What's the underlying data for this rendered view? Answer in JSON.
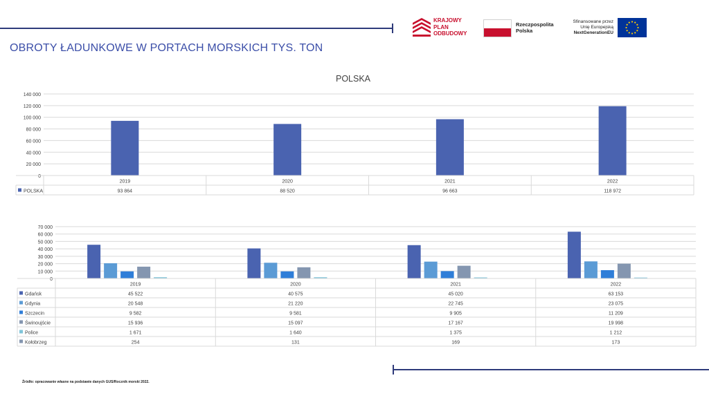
{
  "header": {
    "title": "OBROTY ŁADUNKOWE W PORTACH MORSKICH TYS. TON"
  },
  "logos": {
    "kpo_text": "KRAJOWY\nPLAN\nODBUDOWY",
    "rp_text": "Rzeczpospolita\nPolska",
    "eu_line1": "Sfinansowane przez",
    "eu_line2": "Unię Europejską",
    "eu_line3": "NextGenerationEU"
  },
  "colors": {
    "polska": "#4a63b0",
    "gdansk": "#4a63b0",
    "gdynia": "#5b9bd5",
    "szczecin": "#2f7ed8",
    "swinoujscie": "#8496b0",
    "police": "#7fc4d9",
    "kolobrzeg": "#8496b0",
    "grid": "#d9d9d9",
    "rule": "#2e3a7a",
    "title": "#3b4ea8"
  },
  "chart_data": [
    {
      "type": "bar",
      "title": "POLSKA",
      "categories": [
        "2019",
        "2020",
        "2021",
        "2022"
      ],
      "series": [
        {
          "name": "POLSKA",
          "values": [
            93864,
            88520,
            96663,
            118972
          ],
          "labels": [
            "93 864",
            "88 520",
            "96 663",
            "118 972"
          ]
        }
      ],
      "yticks": [
        "0",
        "20 000",
        "40 000",
        "60 000",
        "80 000",
        "100 000",
        "120 000",
        "140 000"
      ],
      "ylim": [
        0,
        140000
      ],
      "grid": true,
      "legend": "data-table"
    },
    {
      "type": "bar",
      "title": "",
      "categories": [
        "2019",
        "2020",
        "2021",
        "2022"
      ],
      "series": [
        {
          "name": "Gdańsk",
          "values": [
            45522,
            40575,
            45020,
            63153
          ],
          "labels": [
            "45 522",
            "40 575",
            "45 020",
            "63 153"
          ]
        },
        {
          "name": "Gdynia",
          "values": [
            20548,
            21220,
            22745,
            23075
          ],
          "labels": [
            "20 548",
            "21 220",
            "22 745",
            "23 075"
          ]
        },
        {
          "name": "Szczecin",
          "values": [
            9582,
            9581,
            9905,
            11209
          ],
          "labels": [
            "9 582",
            "9 581",
            "9 905",
            "11 209"
          ]
        },
        {
          "name": "Świnoujście",
          "values": [
            15936,
            15097,
            17167,
            19998
          ],
          "labels": [
            "15 936",
            "15 097",
            "17 167",
            "19 998"
          ]
        },
        {
          "name": "Police",
          "values": [
            1671,
            1640,
            1375,
            1212
          ],
          "labels": [
            "1 671",
            "1 640",
            "1 375",
            "1 212"
          ]
        },
        {
          "name": "Kołobrzeg",
          "values": [
            254,
            131,
            169,
            173
          ],
          "labels": [
            "254",
            "131",
            "169",
            "173"
          ]
        }
      ],
      "yticks": [
        "0",
        "10 000",
        "20 000",
        "30 000",
        "40 000",
        "50 000",
        "60 000",
        "70 000"
      ],
      "ylim": [
        0,
        70000
      ],
      "grid": true,
      "legend": "data-table"
    }
  ],
  "footer": {
    "source": "Źródło: opracowanie własne na podstawie danych GUS/Rocznik morski 2022."
  }
}
